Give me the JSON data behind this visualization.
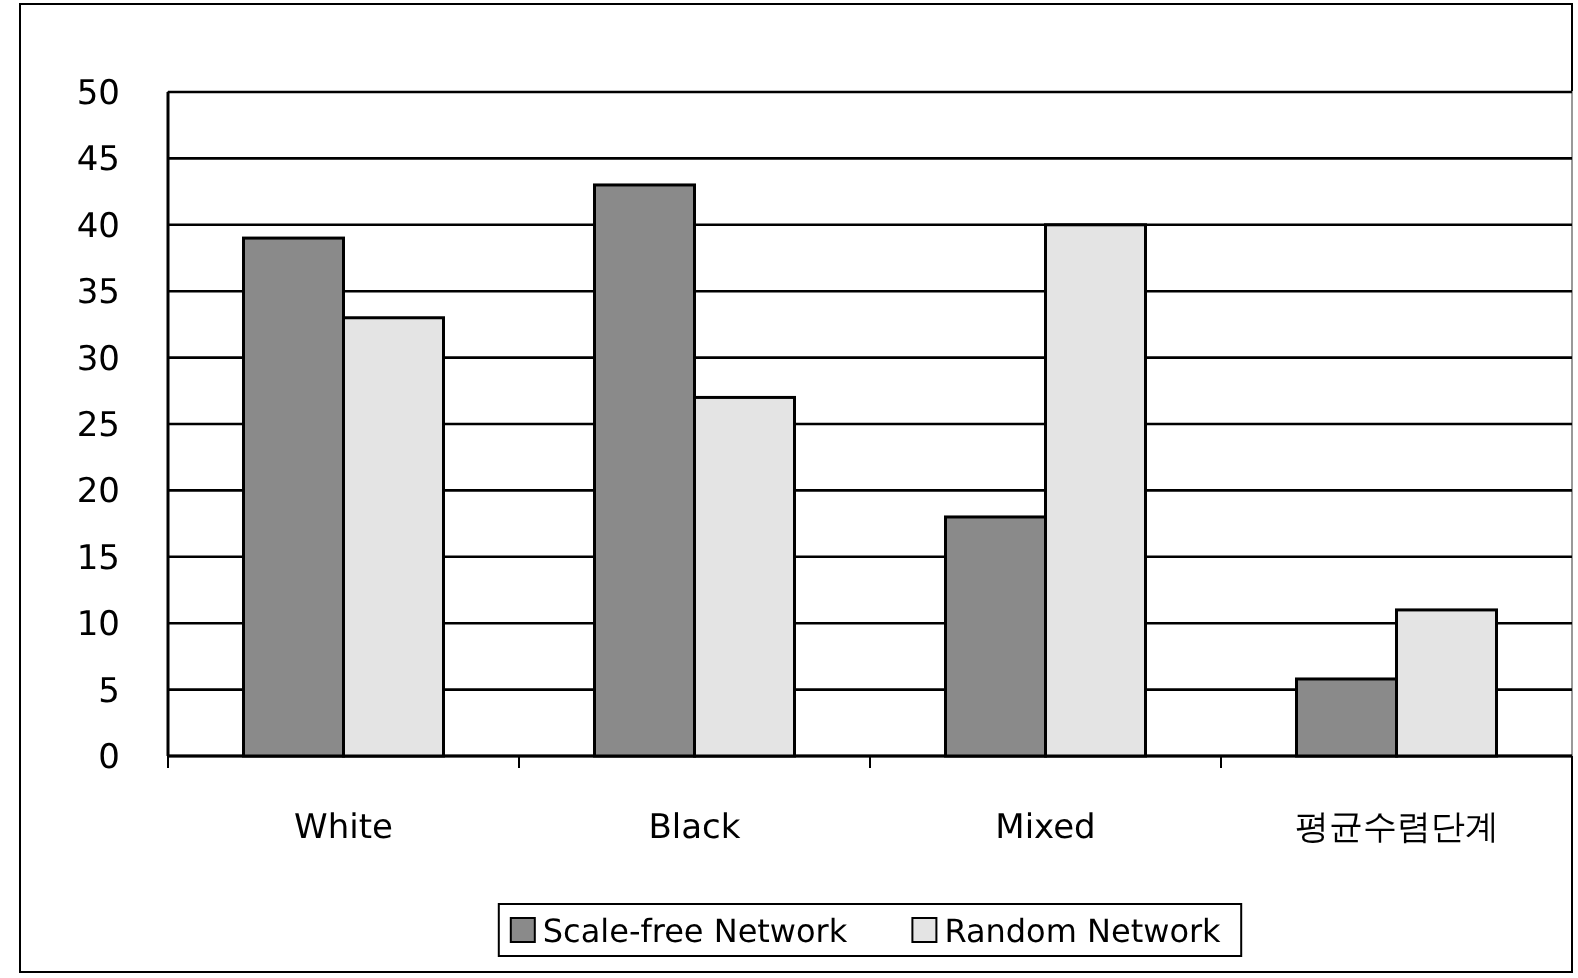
{
  "chart_data": {
    "type": "bar",
    "categories": [
      "White",
      "Black",
      "Mixed",
      "평균수렴단계"
    ],
    "series": [
      {
        "name": "Scale-free Network",
        "color": "#8a8a8a",
        "values": [
          39,
          43,
          18,
          5.8
        ]
      },
      {
        "name": "Random Network",
        "color": "#e4e4e4",
        "values": [
          33,
          27,
          40,
          11
        ]
      }
    ],
    "ylim": [
      0,
      50
    ],
    "yticks": [
      0,
      5,
      10,
      15,
      20,
      25,
      30,
      35,
      40,
      45,
      50
    ],
    "grid": "y",
    "legend": "bottom"
  }
}
